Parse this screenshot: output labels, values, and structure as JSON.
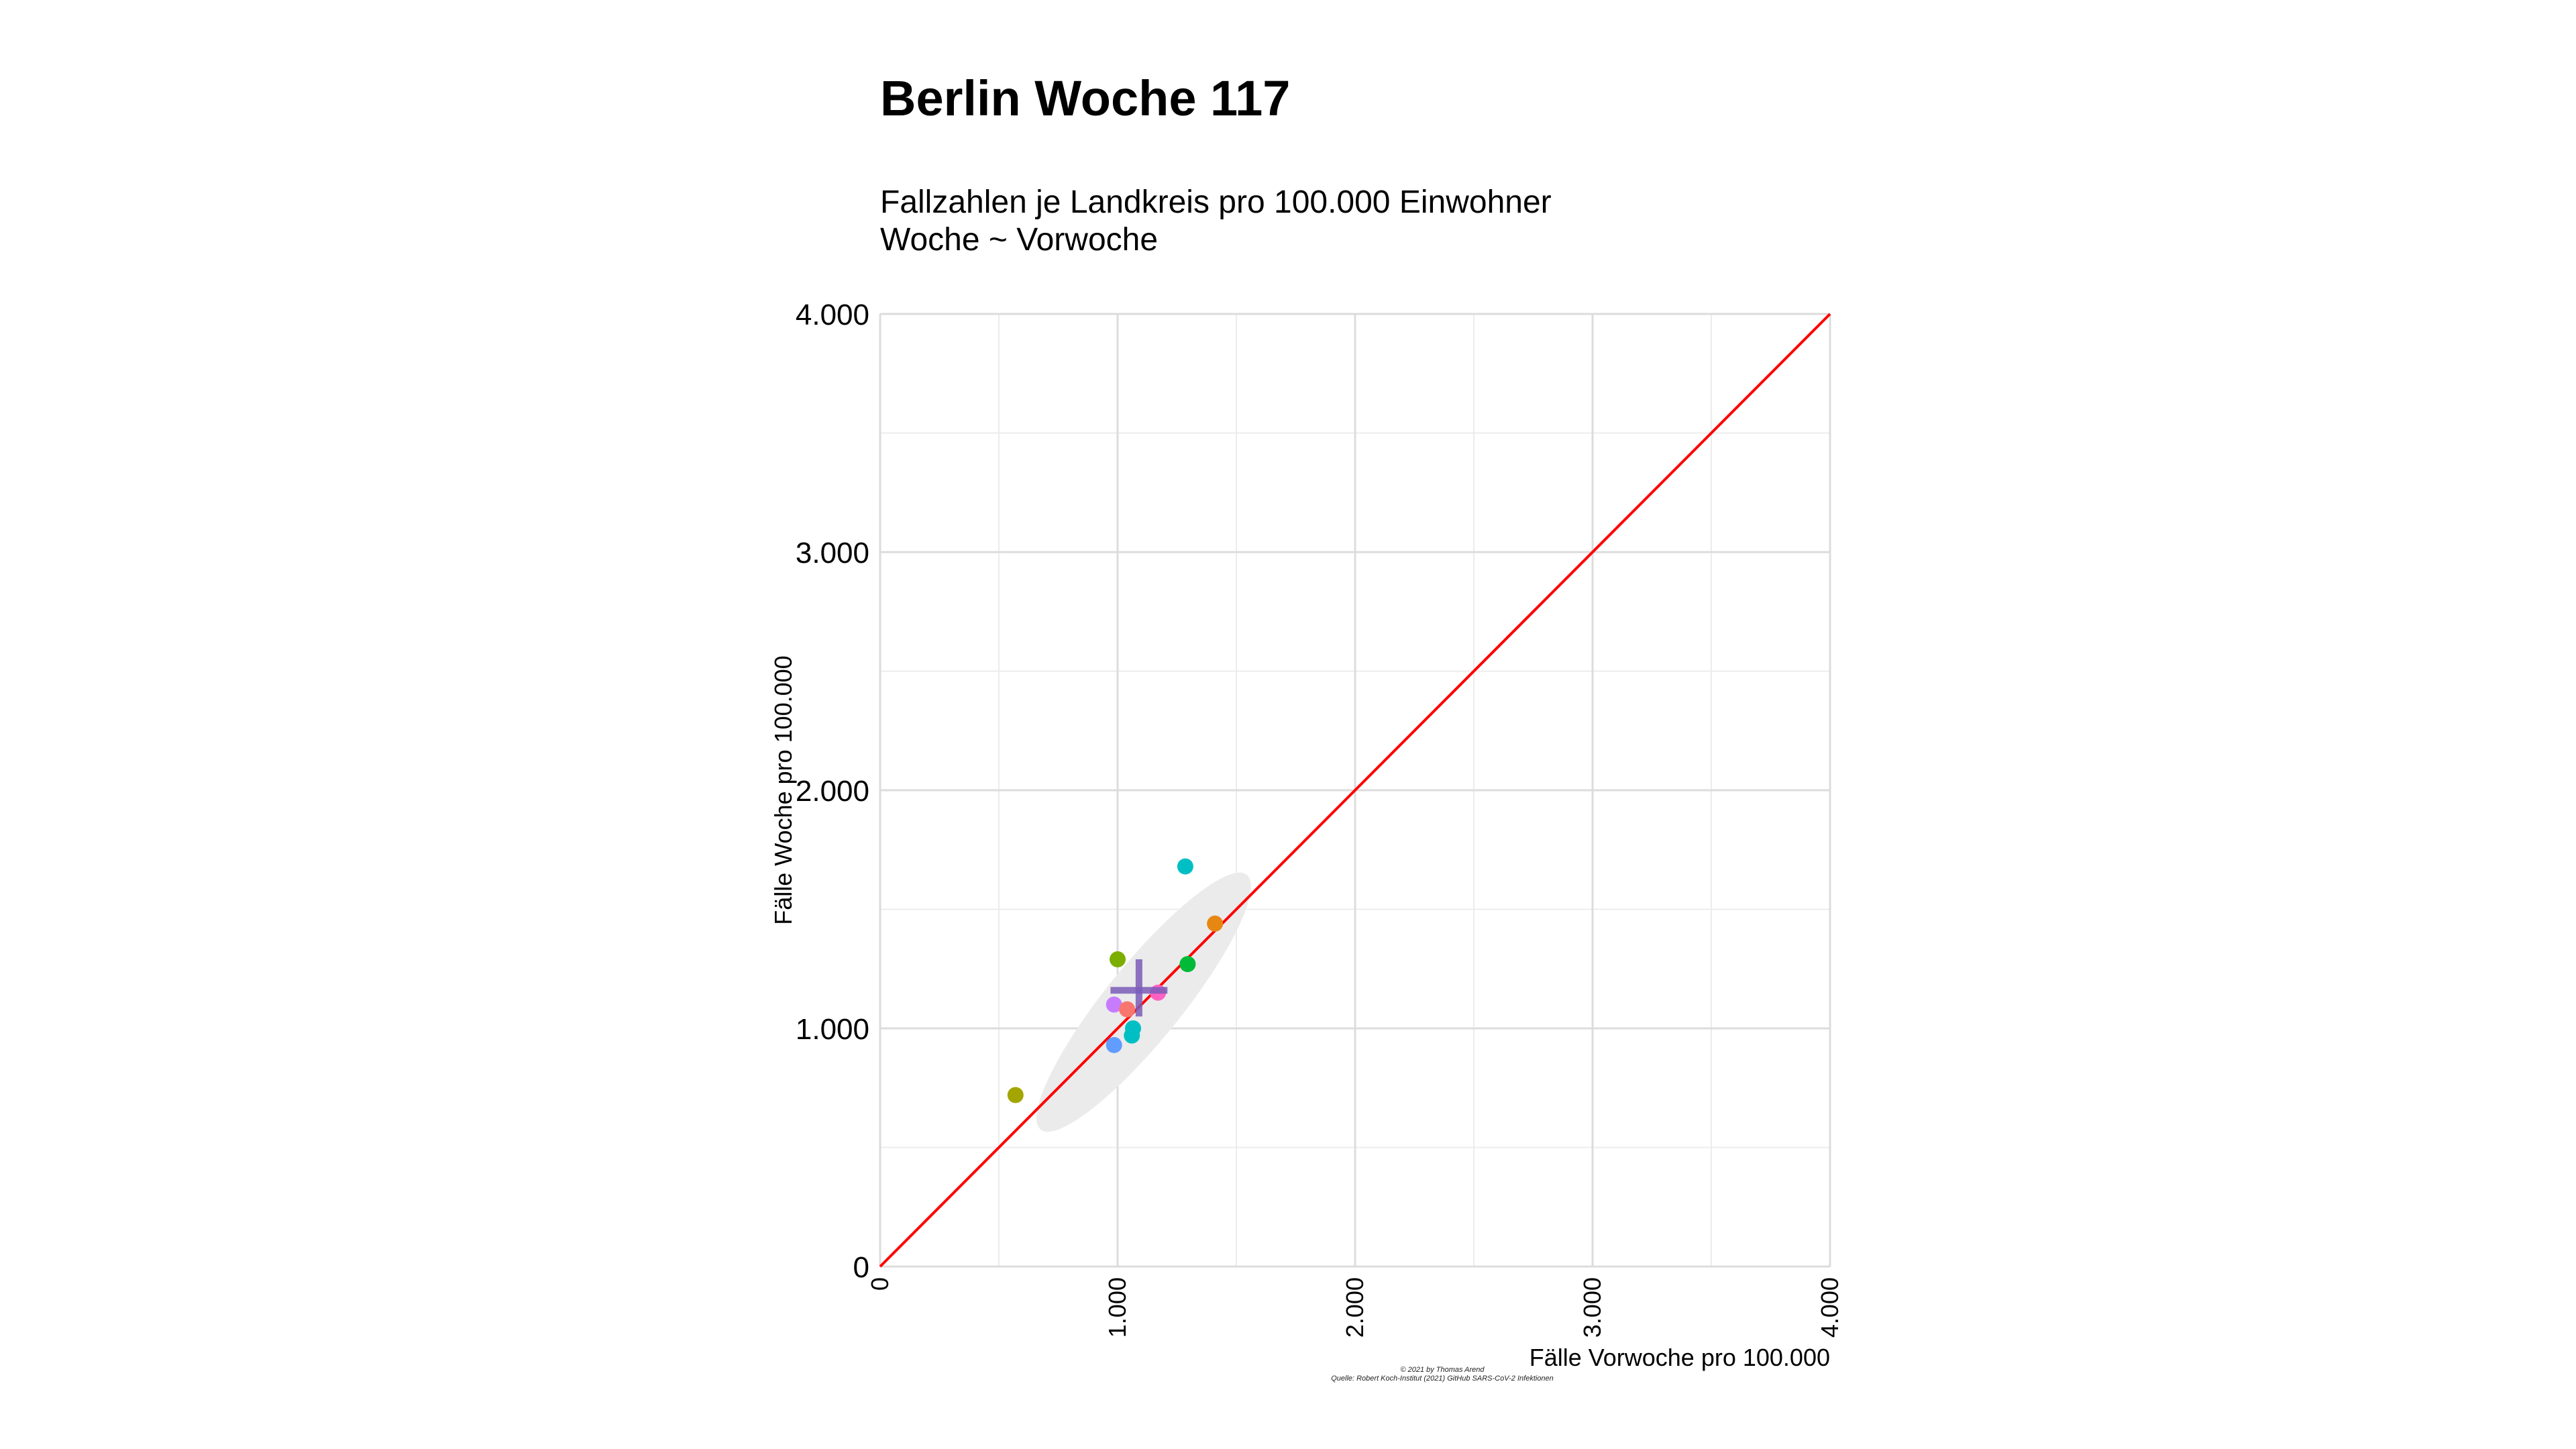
{
  "title": "Berlin Woche 117",
  "subtitle_lines": [
    "Fallzahlen je Landkreis pro 100.000 Einwohner",
    "Woche ~ Vorwoche"
  ],
  "caption_lines": [
    "© 2021 by Thomas Arend",
    "Quelle: Robert Koch-Institut (2021) GitHub SARS-CoV-2 Infektionen"
  ],
  "chart_data": {
    "type": "scatter",
    "title": "Berlin Woche 117",
    "subtitle": "Fallzahlen je Landkreis pro 100.000 Einwohner / Woche ~ Vorwoche",
    "xlabel": "Fälle Vorwoche pro 100.000",
    "ylabel": "Fälle Woche pro 100.000",
    "xlim": [
      0,
      4000
    ],
    "ylim": [
      0,
      4000
    ],
    "x_ticks": [
      "0",
      "1.000",
      "2.000",
      "3.000",
      "4.000"
    ],
    "y_ticks": [
      "0",
      "1.000",
      "2.000",
      "3.000",
      "4.000"
    ],
    "x_tick_values": [
      0,
      1000,
      2000,
      3000,
      4000
    ],
    "y_tick_values": [
      0,
      1000,
      2000,
      3000,
      4000
    ],
    "grid": true,
    "diagonal": {
      "from": [
        0,
        0
      ],
      "to": [
        4000,
        4000
      ],
      "color": "#ff0000"
    },
    "points": [
      {
        "x": 570,
        "y": 720,
        "color": "#a3a500"
      },
      {
        "x": 1000,
        "y": 1290,
        "color": "#7cae00"
      },
      {
        "x": 985,
        "y": 1100,
        "color": "#c77cff"
      },
      {
        "x": 1040,
        "y": 1080,
        "color": "#f8766d"
      },
      {
        "x": 1065,
        "y": 1000,
        "color": "#00bfc4"
      },
      {
        "x": 1060,
        "y": 970,
        "color": "#00bfc4"
      },
      {
        "x": 985,
        "y": 930,
        "color": "#619cff"
      },
      {
        "x": 1170,
        "y": 1150,
        "color": "#ff61c3"
      },
      {
        "x": 1285,
        "y": 1680,
        "color": "#00bfc4"
      },
      {
        "x": 1295,
        "y": 1270,
        "color": "#00ba38"
      },
      {
        "x": 1410,
        "y": 1440,
        "color": "#e68613"
      }
    ],
    "ellipse": {
      "cx": 1110,
      "cy": 1110,
      "rx": 690,
      "ry": 160,
      "angle_deg": 51,
      "color": "#ebebeb"
    },
    "mean_cross": {
      "x": 1090,
      "y": 1160,
      "x_range": [
        970,
        1210
      ],
      "y_range": [
        1050,
        1290
      ],
      "color": "#7b5cb8"
    }
  }
}
